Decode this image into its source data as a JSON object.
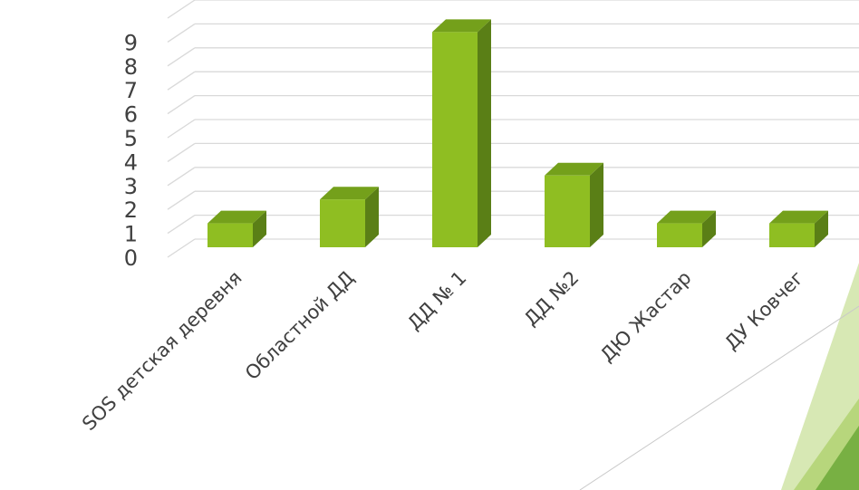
{
  "chart_data": {
    "type": "bar",
    "title": "",
    "xlabel": "",
    "ylabel": "",
    "categories": [
      "SOS детская деревня",
      "Областной ДД",
      "ДД № 1",
      "ДД №2",
      "ДЮ Жастар",
      "ДУ Ковчег"
    ],
    "values": [
      1,
      2,
      9,
      3,
      1,
      1
    ],
    "ylim": [
      0,
      9
    ],
    "yticks": [
      "0",
      "1",
      "2",
      "3",
      "4",
      "5",
      "6",
      "7",
      "8",
      "9"
    ],
    "grid": true,
    "legend": "none",
    "style": "3d-column"
  },
  "colors": {
    "bar_front": "#8fbe22",
    "bar_side": "#5a7f16",
    "bar_top": "#74a01b",
    "gridline": "#d9d9d9",
    "axis_text": "#404040",
    "decor_light": "#d7e8b4",
    "decor_mid": "#b7d67c",
    "decor_dark": "#78b043",
    "decor_line": "#c9c9c9"
  }
}
